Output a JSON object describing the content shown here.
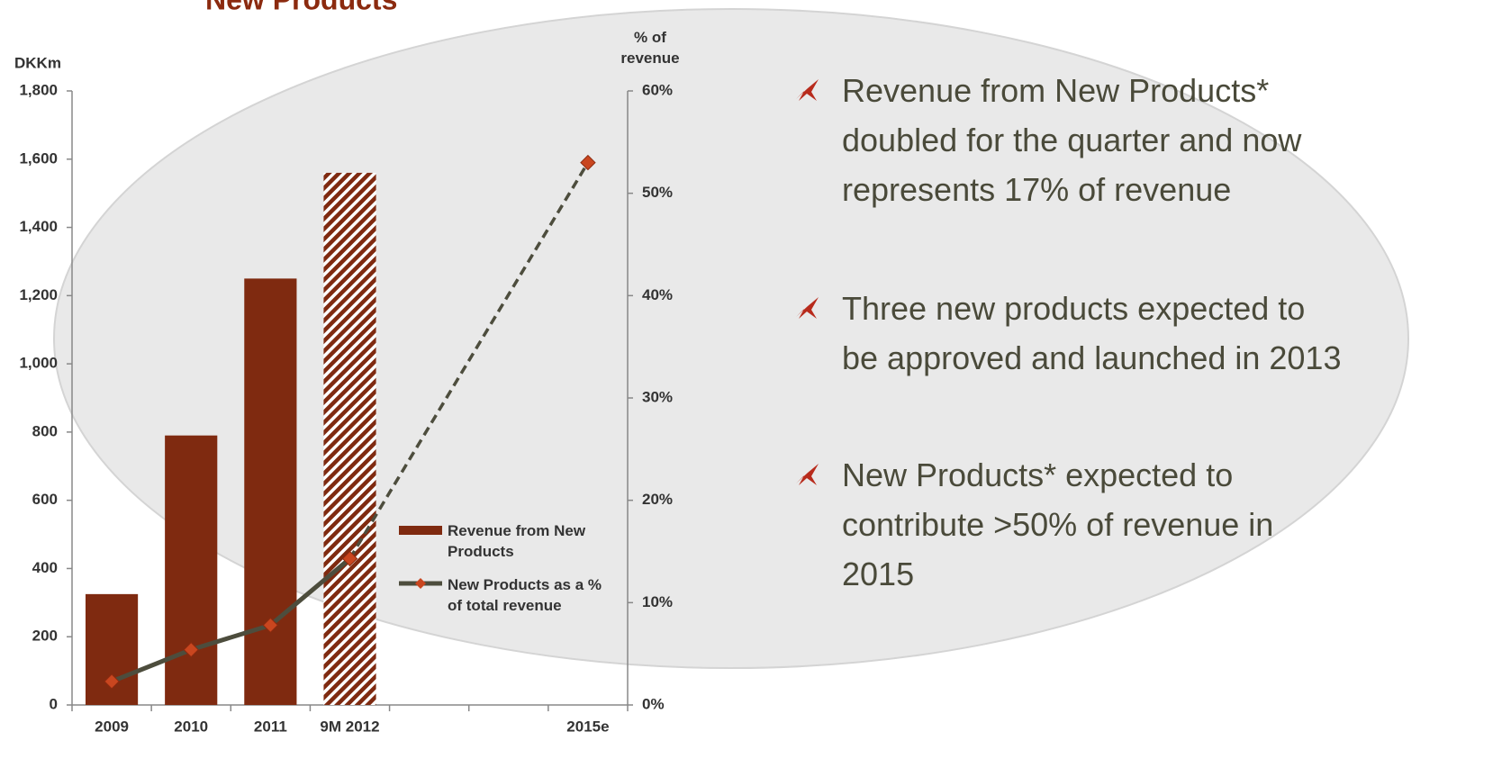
{
  "title": "New Products",
  "chart_data": {
    "type": "bar",
    "y_label": "DKKm",
    "y2_label": "% of revenue",
    "categories": [
      "2009",
      "2010",
      "2011",
      "9M 2012",
      null,
      null,
      "2015e"
    ],
    "series": [
      {
        "name": "Revenue from New Products",
        "type": "bar",
        "color": "#7f2a10",
        "values": [
          325,
          790,
          1250,
          1560,
          null,
          null,
          null
        ],
        "hatched": [
          false,
          false,
          false,
          true,
          false,
          false,
          false
        ]
      },
      {
        "name": "New Products as a % of total revenue",
        "type": "line",
        "axis": "y2",
        "color": "#4d4d3d",
        "marker_color": "#c9461f",
        "values": [
          2.3,
          5.4,
          7.8,
          14.3,
          null,
          null,
          53
        ],
        "dashed_from": 3
      }
    ],
    "ylim": [
      0,
      1800
    ],
    "yticks": [
      0,
      200,
      400,
      600,
      800,
      {
        "value": 1000,
        "label": "1,000"
      },
      {
        "value": 1200,
        "label": "1,200"
      },
      {
        "value": 1400,
        "label": "1,400"
      },
      {
        "value": 1600,
        "label": "1,600"
      },
      {
        "value": 1800,
        "label": "1,800"
      }
    ],
    "y2lim": [
      0,
      60
    ],
    "y2ticks": [
      {
        "value": 0,
        "label": "0%"
      },
      {
        "value": 10,
        "label": "10%"
      },
      {
        "value": 20,
        "label": "20%"
      },
      {
        "value": 30,
        "label": "30%"
      },
      {
        "value": 40,
        "label": "40%"
      },
      {
        "value": 50,
        "label": "50%"
      },
      {
        "value": 60,
        "label": "60%"
      }
    ]
  },
  "bullets": [
    [
      "Revenue from New Products*",
      "doubled for the quarter and now",
      "represents 17% of revenue"
    ],
    [
      "Three new products expected to",
      "be approved and launched in 2013"
    ],
    [
      "New Products* expected to",
      "contribute >50% of revenue in",
      "2015"
    ]
  ]
}
